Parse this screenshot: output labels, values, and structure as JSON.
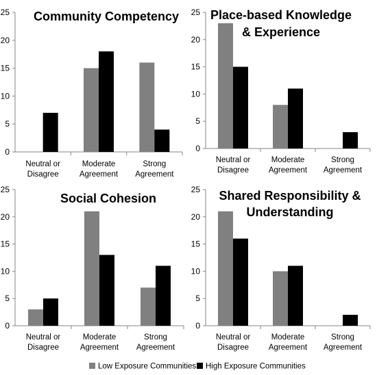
{
  "chart_data": [
    {
      "type": "bar",
      "title_lines": [
        "Community Competency"
      ],
      "categories": [
        [
          "Neutral or",
          "Disagree"
        ],
        [
          "Moderate",
          "Agreement"
        ],
        [
          "Strong",
          "Agreement"
        ]
      ],
      "ylim": [
        0,
        25
      ],
      "yticks": [
        0,
        5,
        10,
        15,
        20,
        25
      ],
      "series": [
        {
          "name": "Low Exposure Communities",
          "values": [
            0,
            15,
            16
          ]
        },
        {
          "name": "High Exposure Communities",
          "values": [
            7,
            18,
            4
          ]
        }
      ]
    },
    {
      "type": "bar",
      "title_lines": [
        "Place-based Knowledge",
        "& Experience"
      ],
      "categories": [
        [
          "Neutral or",
          "Disagree"
        ],
        [
          "Moderate",
          "Agreement"
        ],
        [
          "Strong",
          "Agreement"
        ]
      ],
      "ylim": [
        0,
        25
      ],
      "yticks": [
        0,
        5,
        10,
        15,
        20,
        25
      ],
      "series": [
        {
          "name": "Low Exposure Communities",
          "values": [
            23,
            8,
            0
          ]
        },
        {
          "name": "High Exposure Communities",
          "values": [
            15,
            11,
            3
          ]
        }
      ]
    },
    {
      "type": "bar",
      "title_lines": [
        "Social Cohesion"
      ],
      "categories": [
        [
          "Neutral or",
          "Disagree"
        ],
        [
          "Moderate",
          "Agreement"
        ],
        [
          "Strong",
          "Agreement"
        ]
      ],
      "ylim": [
        0,
        25
      ],
      "yticks": [
        0,
        5,
        10,
        15,
        20,
        25
      ],
      "series": [
        {
          "name": "Low Exposure Communities",
          "values": [
            3,
            21,
            7
          ]
        },
        {
          "name": "High Exposure Communities",
          "values": [
            5,
            13,
            11
          ]
        }
      ]
    },
    {
      "type": "bar",
      "title_lines": [
        "Shared Responsibility &",
        "Understanding"
      ],
      "categories": [
        [
          "Neutral or",
          "Disagree"
        ],
        [
          "Moderate",
          "Agreement"
        ],
        [
          "Strong",
          "Agreement"
        ]
      ],
      "ylim": [
        0,
        25
      ],
      "yticks": [
        0,
        5,
        10,
        15,
        20,
        25
      ],
      "series": [
        {
          "name": "Low Exposure Communities",
          "values": [
            21,
            10,
            0
          ]
        },
        {
          "name": "High Exposure Communities",
          "values": [
            16,
            11,
            2
          ]
        }
      ]
    }
  ],
  "legend": {
    "position": "bottom",
    "items": [
      {
        "label": "Low Exposure Communities",
        "color": "#808080"
      },
      {
        "label": "High Exposure Communities",
        "color": "#000000"
      }
    ]
  },
  "colors": {
    "low": "#808080",
    "high": "#000000",
    "axis": "#868686"
  }
}
